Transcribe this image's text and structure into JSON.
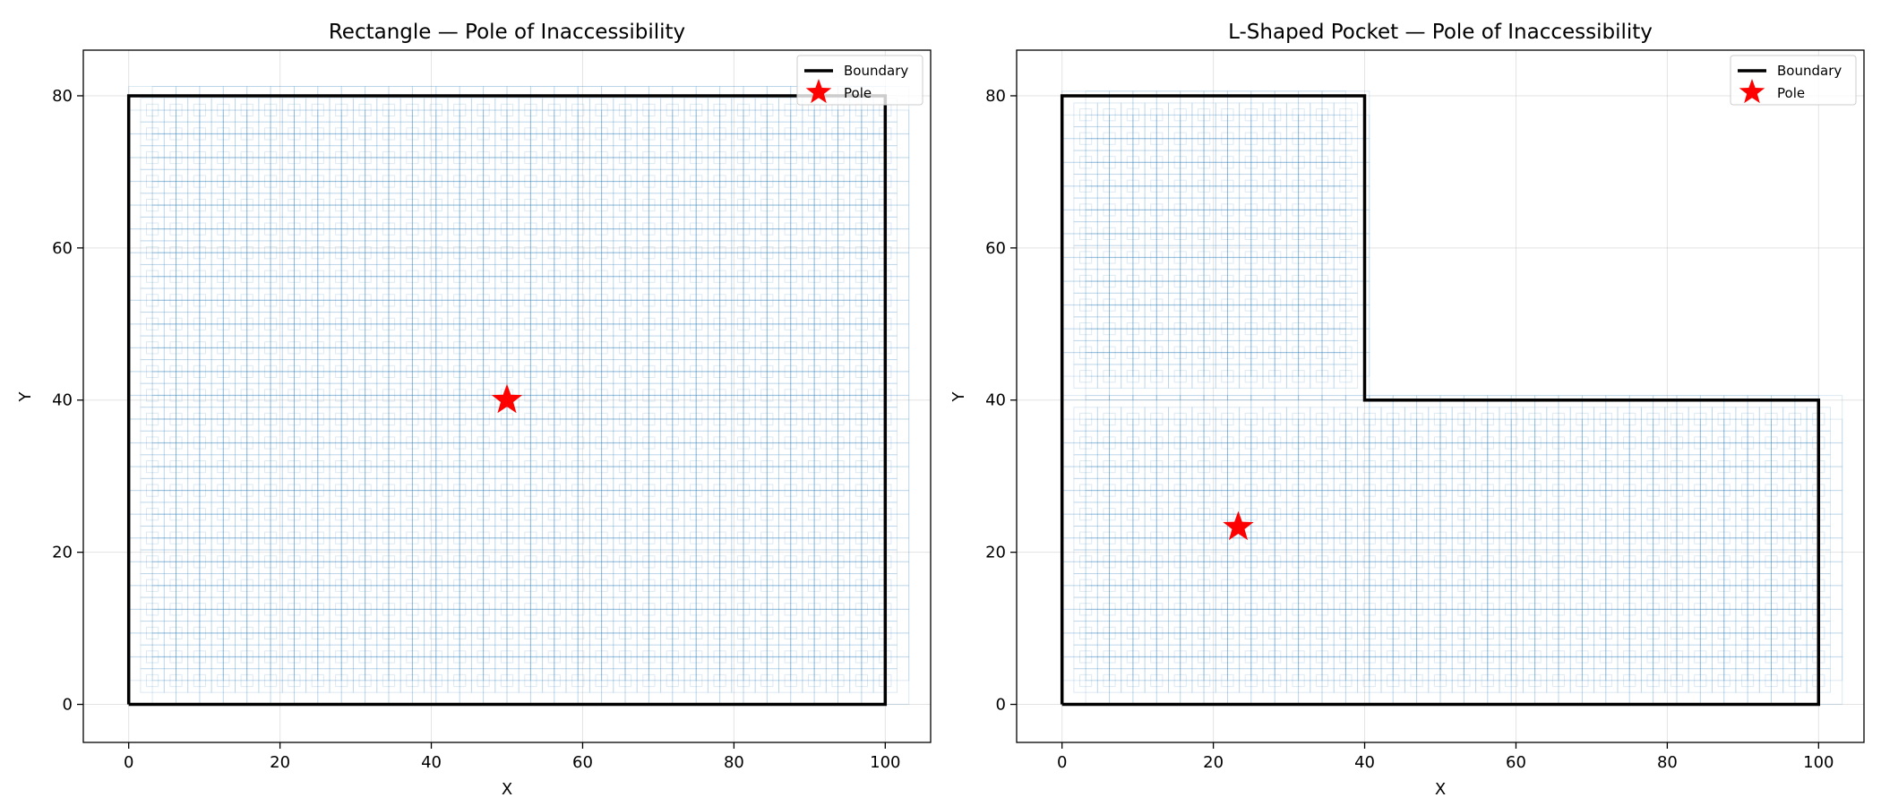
{
  "chart_data": [
    {
      "type": "line",
      "title": "Rectangle — Pole of Inaccessibility",
      "xlabel": "X",
      "ylabel": "Y",
      "xlim": [
        -6,
        106
      ],
      "ylim": [
        -5,
        86
      ],
      "xticks": [
        0,
        20,
        40,
        60,
        80,
        100
      ],
      "yticks": [
        0,
        20,
        40,
        60,
        80
      ],
      "grid": true,
      "legend_position": "top-right",
      "series": [
        {
          "name": "Boundary",
          "kind": "polygon",
          "color": "#000000",
          "x": [
            0,
            100,
            100,
            0,
            0
          ],
          "y": [
            0,
            0,
            80,
            80,
            0
          ]
        },
        {
          "name": "Pole",
          "kind": "marker",
          "marker": "star",
          "color": "#ff0000",
          "x": [
            50
          ],
          "y": [
            40
          ]
        }
      ],
      "background_cells": {
        "color": "#1f77b4",
        "step": 6.25,
        "regions": [
          [
            0,
            0,
            100,
            80
          ]
        ]
      }
    },
    {
      "type": "line",
      "title": "L-Shaped Pocket — Pole of Inaccessibility",
      "xlabel": "X",
      "ylabel": "Y",
      "xlim": [
        -6,
        106
      ],
      "ylim": [
        -5,
        86
      ],
      "xticks": [
        0,
        20,
        40,
        60,
        80,
        100
      ],
      "yticks": [
        0,
        20,
        40,
        60,
        80
      ],
      "grid": true,
      "legend_position": "top-right",
      "series": [
        {
          "name": "Boundary",
          "kind": "polygon",
          "color": "#000000",
          "x": [
            0,
            100,
            100,
            40,
            40,
            0,
            0
          ],
          "y": [
            0,
            0,
            40,
            40,
            80,
            80,
            0
          ]
        },
        {
          "name": "Pole",
          "kind": "marker",
          "marker": "star",
          "color": "#ff0000",
          "x": [
            23.3
          ],
          "y": [
            23.3
          ]
        }
      ],
      "background_cells": {
        "color": "#1f77b4",
        "step": 6.25,
        "regions": [
          [
            0,
            0,
            100,
            40
          ],
          [
            0,
            40,
            40,
            80
          ]
        ]
      }
    }
  ]
}
